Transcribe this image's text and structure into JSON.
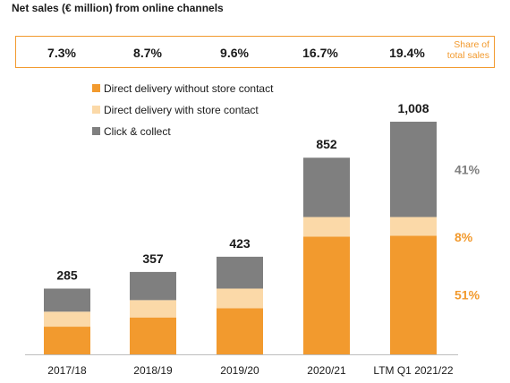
{
  "title": "Net sales (€ million) from online channels",
  "share": {
    "values": [
      "7.3%",
      "8.7%",
      "9.6%",
      "16.7%",
      "19.4%"
    ],
    "label_line1": "Share of",
    "label_line2": "total sales"
  },
  "colors": {
    "direct_no_store": "#f29a2e",
    "direct_store": "#fbd9a8",
    "click_collect": "#7f7f7f",
    "accent": "#f29a2e"
  },
  "chart_data": {
    "type": "bar",
    "stacked": true,
    "categories": [
      "2017/18",
      "2018/19",
      "2019/20",
      "2020/21",
      "LTM Q1 2021/22"
    ],
    "totals": [
      "285",
      "357",
      "423",
      "852",
      "1,008"
    ],
    "total_values": [
      285,
      357,
      423,
      852,
      1008
    ],
    "series": [
      {
        "name": "Direct delivery without store contact",
        "values": [
          120,
          160,
          200,
          510,
          514
        ],
        "color": "#f29a2e"
      },
      {
        "name": "Direct delivery with store contact",
        "values": [
          65,
          75,
          85,
          85,
          81
        ],
        "color": "#fbd9a8"
      },
      {
        "name": "Click & collect",
        "values": [
          100,
          122,
          138,
          257,
          413
        ],
        "color": "#7f7f7f"
      }
    ],
    "ylim": [
      0,
      1008
    ],
    "segment_labels": [
      {
        "text": "41%",
        "color": "#7f7f7f",
        "series": 2
      },
      {
        "text": "8%",
        "color": "#f29a2e",
        "series": 1
      },
      {
        "text": "51%",
        "color": "#f29a2e",
        "series": 0
      }
    ]
  }
}
